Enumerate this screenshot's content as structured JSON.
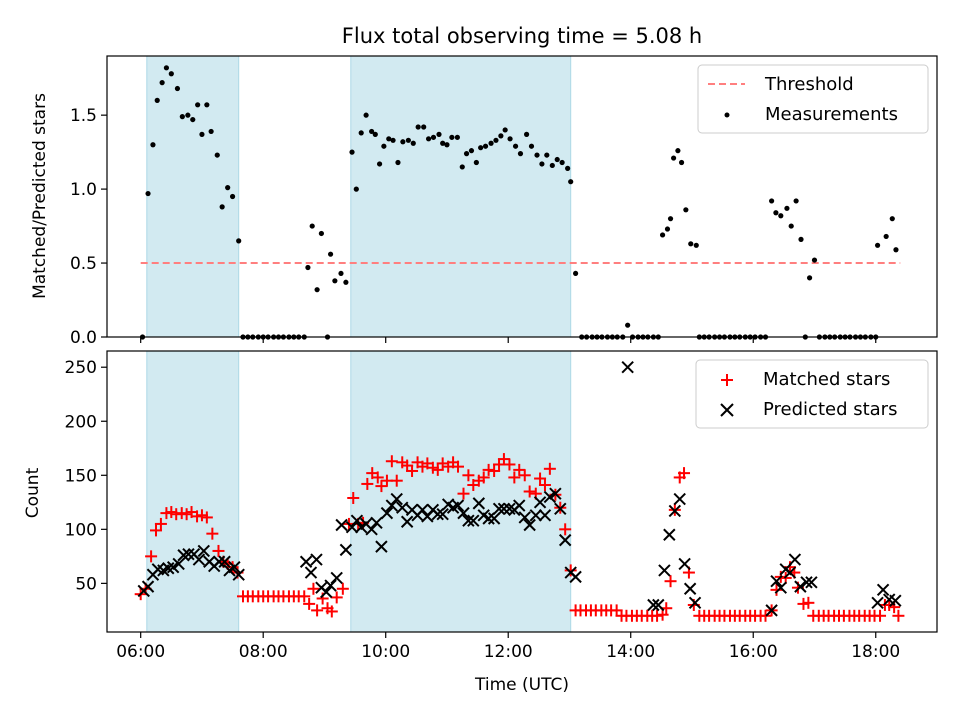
{
  "title": "Flux total observing time = 5.08 h",
  "colors": {
    "band": "#add8e6",
    "threshold": "#ff7f7f",
    "measurement": "#000000",
    "matched": "#ff0000",
    "predicted": "#000000"
  },
  "xlabel": "Time (UTC)",
  "x_ticks": [
    {
      "h": 6,
      "label": "06:00"
    },
    {
      "h": 8,
      "label": "08:00"
    },
    {
      "h": 10,
      "label": "10:00"
    },
    {
      "h": 12,
      "label": "12:00"
    },
    {
      "h": 14,
      "label": "14:00"
    },
    {
      "h": 16,
      "label": "16:00"
    },
    {
      "h": 18,
      "label": "18:00"
    }
  ],
  "x_range_hours": [
    5.45,
    19.0
  ],
  "bands_hours": [
    [
      6.1,
      7.6
    ],
    [
      9.43,
      13.02
    ]
  ],
  "top": {
    "ylabel": "Matched/Predicted stars",
    "ylim": [
      0,
      1.9
    ],
    "y_ticks": [
      {
        "v": 0.0,
        "label": "0.0"
      },
      {
        "v": 0.5,
        "label": "0.5"
      },
      {
        "v": 1.0,
        "label": "1.0"
      },
      {
        "v": 1.5,
        "label": "1.5"
      }
    ],
    "threshold": {
      "value": 0.5,
      "x_from": 6.0,
      "x_to": 18.4
    },
    "legend": [
      "Threshold",
      "Measurements"
    ],
    "measurements": [
      [
        6.03,
        0.0
      ],
      [
        6.12,
        0.97
      ],
      [
        6.2,
        1.3
      ],
      [
        6.27,
        1.6
      ],
      [
        6.35,
        1.72
      ],
      [
        6.42,
        1.82
      ],
      [
        6.5,
        1.78
      ],
      [
        6.6,
        1.68
      ],
      [
        6.68,
        1.49
      ],
      [
        6.77,
        1.5
      ],
      [
        6.85,
        1.47
      ],
      [
        6.93,
        1.57
      ],
      [
        7.0,
        1.37
      ],
      [
        7.08,
        1.57
      ],
      [
        7.15,
        1.39
      ],
      [
        7.25,
        1.23
      ],
      [
        7.33,
        0.88
      ],
      [
        7.42,
        1.01
      ],
      [
        7.5,
        0.95
      ],
      [
        7.6,
        0.65
      ],
      [
        7.67,
        0.0
      ],
      [
        7.75,
        0.0
      ],
      [
        7.83,
        0.0
      ],
      [
        7.92,
        0.0
      ],
      [
        8.0,
        0.0
      ],
      [
        8.08,
        0.0
      ],
      [
        8.17,
        0.0
      ],
      [
        8.25,
        0.0
      ],
      [
        8.33,
        0.0
      ],
      [
        8.42,
        0.0
      ],
      [
        8.5,
        0.0
      ],
      [
        8.58,
        0.0
      ],
      [
        8.67,
        0.0
      ],
      [
        8.73,
        0.47
      ],
      [
        8.8,
        0.75
      ],
      [
        8.88,
        0.32
      ],
      [
        8.95,
        0.7
      ],
      [
        9.05,
        0.0
      ],
      [
        9.1,
        0.56
      ],
      [
        9.17,
        0.38
      ],
      [
        9.27,
        0.43
      ],
      [
        9.35,
        0.37
      ],
      [
        9.45,
        1.25
      ],
      [
        9.52,
        1.0
      ],
      [
        9.6,
        1.38
      ],
      [
        9.68,
        1.5
      ],
      [
        9.77,
        1.39
      ],
      [
        9.83,
        1.37
      ],
      [
        9.9,
        1.17
      ],
      [
        9.97,
        1.29
      ],
      [
        10.05,
        1.34
      ],
      [
        10.12,
        1.33
      ],
      [
        10.2,
        1.18
      ],
      [
        10.28,
        1.32
      ],
      [
        10.37,
        1.33
      ],
      [
        10.45,
        1.31
      ],
      [
        10.53,
        1.42
      ],
      [
        10.62,
        1.42
      ],
      [
        10.7,
        1.34
      ],
      [
        10.78,
        1.35
      ],
      [
        10.87,
        1.37
      ],
      [
        10.93,
        1.31
      ],
      [
        11.0,
        1.3
      ],
      [
        11.08,
        1.35
      ],
      [
        11.17,
        1.35
      ],
      [
        11.25,
        1.15
      ],
      [
        11.32,
        1.24
      ],
      [
        11.4,
        1.26
      ],
      [
        11.48,
        1.18
      ],
      [
        11.55,
        1.28
      ],
      [
        11.63,
        1.29
      ],
      [
        11.72,
        1.31
      ],
      [
        11.8,
        1.33
      ],
      [
        11.88,
        1.36
      ],
      [
        11.95,
        1.4
      ],
      [
        12.03,
        1.34
      ],
      [
        12.12,
        1.29
      ],
      [
        12.2,
        1.24
      ],
      [
        12.3,
        1.37
      ],
      [
        12.38,
        1.29
      ],
      [
        12.47,
        1.23
      ],
      [
        12.55,
        1.17
      ],
      [
        12.63,
        1.23
      ],
      [
        12.72,
        1.16
      ],
      [
        12.8,
        1.2
      ],
      [
        12.88,
        1.18
      ],
      [
        12.97,
        1.14
      ],
      [
        13.02,
        1.05
      ],
      [
        13.1,
        0.43
      ],
      [
        13.2,
        0.0
      ],
      [
        13.28,
        0.0
      ],
      [
        13.37,
        0.0
      ],
      [
        13.45,
        0.0
      ],
      [
        13.53,
        0.0
      ],
      [
        13.62,
        0.0
      ],
      [
        13.7,
        0.0
      ],
      [
        13.78,
        0.0
      ],
      [
        13.87,
        0.0
      ],
      [
        13.95,
        0.08
      ],
      [
        14.03,
        0.0
      ],
      [
        14.12,
        0.0
      ],
      [
        14.2,
        0.0
      ],
      [
        14.28,
        0.0
      ],
      [
        14.37,
        0.0
      ],
      [
        14.45,
        0.0
      ],
      [
        14.52,
        0.69
      ],
      [
        14.6,
        0.73
      ],
      [
        14.65,
        0.8
      ],
      [
        14.7,
        1.21
      ],
      [
        14.77,
        1.26
      ],
      [
        14.83,
        1.18
      ],
      [
        14.9,
        0.86
      ],
      [
        14.98,
        0.63
      ],
      [
        15.07,
        0.62
      ],
      [
        15.12,
        0.0
      ],
      [
        15.2,
        0.0
      ],
      [
        15.28,
        0.0
      ],
      [
        15.37,
        0.0
      ],
      [
        15.45,
        0.0
      ],
      [
        15.53,
        0.0
      ],
      [
        15.62,
        0.0
      ],
      [
        15.7,
        0.0
      ],
      [
        15.78,
        0.0
      ],
      [
        15.87,
        0.0
      ],
      [
        15.95,
        0.0
      ],
      [
        16.03,
        0.0
      ],
      [
        16.12,
        0.0
      ],
      [
        16.2,
        0.0
      ],
      [
        16.3,
        0.92
      ],
      [
        16.37,
        0.84
      ],
      [
        16.45,
        0.82
      ],
      [
        16.55,
        0.87
      ],
      [
        16.62,
        0.75
      ],
      [
        16.7,
        0.92
      ],
      [
        16.78,
        0.66
      ],
      [
        16.85,
        0.0
      ],
      [
        16.92,
        0.4
      ],
      [
        17.0,
        0.52
      ],
      [
        17.08,
        0.0
      ],
      [
        17.17,
        0.0
      ],
      [
        17.25,
        0.0
      ],
      [
        17.33,
        0.0
      ],
      [
        17.42,
        0.0
      ],
      [
        17.5,
        0.0
      ],
      [
        17.58,
        0.0
      ],
      [
        17.67,
        0.0
      ],
      [
        17.75,
        0.0
      ],
      [
        17.83,
        0.0
      ],
      [
        17.92,
        0.0
      ],
      [
        18.0,
        0.0
      ],
      [
        18.03,
        0.62
      ],
      [
        18.17,
        0.68
      ],
      [
        18.27,
        0.8
      ],
      [
        18.33,
        0.59
      ]
    ]
  },
  "bottom": {
    "ylabel": "Count",
    "ylim": [
      5,
      265
    ],
    "y_ticks": [
      {
        "v": 50,
        "label": "50"
      },
      {
        "v": 100,
        "label": "100"
      },
      {
        "v": 150,
        "label": "150"
      },
      {
        "v": 200,
        "label": "200"
      },
      {
        "v": 250,
        "label": "250"
      }
    ],
    "legend": [
      "Matched stars",
      "Predicted stars"
    ],
    "matched": [
      [
        6.0,
        40
      ],
      [
        6.08,
        45
      ],
      [
        6.17,
        75
      ],
      [
        6.25,
        99
      ],
      [
        6.33,
        105
      ],
      [
        6.42,
        115
      ],
      [
        6.5,
        116
      ],
      [
        6.58,
        114
      ],
      [
        6.67,
        115
      ],
      [
        6.75,
        114
      ],
      [
        6.83,
        116
      ],
      [
        6.92,
        112
      ],
      [
        7.0,
        113
      ],
      [
        7.08,
        111
      ],
      [
        7.17,
        96
      ],
      [
        7.27,
        80
      ],
      [
        7.35,
        70
      ],
      [
        7.42,
        68
      ],
      [
        7.5,
        65
      ],
      [
        7.58,
        60
      ],
      [
        7.67,
        38
      ],
      [
        7.75,
        38
      ],
      [
        7.83,
        38
      ],
      [
        7.92,
        38
      ],
      [
        8.0,
        38
      ],
      [
        8.08,
        38
      ],
      [
        8.17,
        38
      ],
      [
        8.25,
        38
      ],
      [
        8.33,
        38
      ],
      [
        8.42,
        38
      ],
      [
        8.5,
        38
      ],
      [
        8.58,
        38
      ],
      [
        8.67,
        38
      ],
      [
        8.75,
        31
      ],
      [
        8.82,
        45
      ],
      [
        8.88,
        25
      ],
      [
        8.97,
        36
      ],
      [
        9.05,
        27
      ],
      [
        9.12,
        24
      ],
      [
        9.2,
        37
      ],
      [
        9.3,
        45
      ],
      [
        9.4,
        105
      ],
      [
        9.47,
        129
      ],
      [
        9.55,
        105
      ],
      [
        9.63,
        106
      ],
      [
        9.7,
        142
      ],
      [
        9.78,
        152
      ],
      [
        9.87,
        148
      ],
      [
        9.93,
        140
      ],
      [
        10.02,
        145
      ],
      [
        10.1,
        163
      ],
      [
        10.18,
        145
      ],
      [
        10.27,
        162
      ],
      [
        10.35,
        159
      ],
      [
        10.43,
        154
      ],
      [
        10.52,
        162
      ],
      [
        10.6,
        158
      ],
      [
        10.68,
        161
      ],
      [
        10.77,
        157
      ],
      [
        10.85,
        155
      ],
      [
        10.93,
        161
      ],
      [
        11.02,
        158
      ],
      [
        11.1,
        162
      ],
      [
        11.18,
        158
      ],
      [
        11.27,
        133
      ],
      [
        11.35,
        150
      ],
      [
        11.43,
        141
      ],
      [
        11.52,
        145
      ],
      [
        11.6,
        148
      ],
      [
        11.68,
        155
      ],
      [
        11.77,
        154
      ],
      [
        11.85,
        160
      ],
      [
        11.93,
        165
      ],
      [
        12.02,
        160
      ],
      [
        12.1,
        148
      ],
      [
        12.18,
        155
      ],
      [
        12.27,
        150
      ],
      [
        12.35,
        135
      ],
      [
        12.45,
        133
      ],
      [
        12.52,
        147
      ],
      [
        12.6,
        141
      ],
      [
        12.68,
        156
      ],
      [
        12.77,
        132
      ],
      [
        12.85,
        120
      ],
      [
        12.93,
        100
      ],
      [
        13.02,
        62
      ],
      [
        13.1,
        25
      ],
      [
        13.18,
        25
      ],
      [
        13.27,
        25
      ],
      [
        13.35,
        25
      ],
      [
        13.43,
        25
      ],
      [
        13.52,
        25
      ],
      [
        13.6,
        25
      ],
      [
        13.68,
        25
      ],
      [
        13.77,
        25
      ],
      [
        13.85,
        20
      ],
      [
        13.93,
        20
      ],
      [
        14.02,
        20
      ],
      [
        14.1,
        20
      ],
      [
        14.18,
        20
      ],
      [
        14.27,
        20
      ],
      [
        14.35,
        20
      ],
      [
        14.43,
        20
      ],
      [
        14.52,
        21
      ],
      [
        14.58,
        27
      ],
      [
        14.65,
        52
      ],
      [
        14.72,
        118
      ],
      [
        14.8,
        148
      ],
      [
        14.87,
        152
      ],
      [
        14.95,
        60
      ],
      [
        15.03,
        30
      ],
      [
        15.12,
        20
      ],
      [
        15.2,
        20
      ],
      [
        15.28,
        20
      ],
      [
        15.37,
        20
      ],
      [
        15.45,
        20
      ],
      [
        15.53,
        20
      ],
      [
        15.62,
        20
      ],
      [
        15.7,
        20
      ],
      [
        15.78,
        20
      ],
      [
        15.87,
        20
      ],
      [
        15.95,
        20
      ],
      [
        16.03,
        20
      ],
      [
        16.12,
        20
      ],
      [
        16.2,
        20
      ],
      [
        16.3,
        25
      ],
      [
        16.38,
        44
      ],
      [
        16.45,
        56
      ],
      [
        16.53,
        55
      ],
      [
        16.6,
        65
      ],
      [
        16.67,
        60
      ],
      [
        16.73,
        46
      ],
      [
        16.82,
        31
      ],
      [
        16.9,
        32
      ],
      [
        16.98,
        20
      ],
      [
        17.07,
        20
      ],
      [
        17.15,
        20
      ],
      [
        17.23,
        20
      ],
      [
        17.32,
        20
      ],
      [
        17.4,
        20
      ],
      [
        17.48,
        20
      ],
      [
        17.57,
        20
      ],
      [
        17.65,
        20
      ],
      [
        17.73,
        20
      ],
      [
        17.82,
        20
      ],
      [
        17.9,
        20
      ],
      [
        17.98,
        20
      ],
      [
        18.07,
        20
      ],
      [
        18.15,
        30
      ],
      [
        18.22,
        30
      ],
      [
        18.3,
        28
      ],
      [
        18.37,
        20
      ]
    ],
    "predicted": [
      [
        6.05,
        43
      ],
      [
        6.12,
        47
      ],
      [
        6.2,
        58
      ],
      [
        6.28,
        63
      ],
      [
        6.37,
        62
      ],
      [
        6.45,
        64
      ],
      [
        6.53,
        65
      ],
      [
        6.62,
        68
      ],
      [
        6.7,
        76
      ],
      [
        6.78,
        77
      ],
      [
        6.87,
        77
      ],
      [
        6.95,
        72
      ],
      [
        7.03,
        80
      ],
      [
        7.12,
        70
      ],
      [
        7.2,
        66
      ],
      [
        7.28,
        70
      ],
      [
        7.37,
        70
      ],
      [
        7.45,
        62
      ],
      [
        7.53,
        65
      ],
      [
        7.6,
        58
      ],
      [
        8.7,
        70
      ],
      [
        8.78,
        60
      ],
      [
        8.87,
        72
      ],
      [
        8.95,
        46
      ],
      [
        9.03,
        42
      ],
      [
        9.1,
        48
      ],
      [
        9.2,
        55
      ],
      [
        9.28,
        104
      ],
      [
        9.35,
        81
      ],
      [
        9.45,
        102
      ],
      [
        9.53,
        108
      ],
      [
        9.6,
        102
      ],
      [
        9.68,
        105
      ],
      [
        9.77,
        100
      ],
      [
        9.85,
        106
      ],
      [
        9.93,
        84
      ],
      [
        10.02,
        115
      ],
      [
        10.1,
        122
      ],
      [
        10.18,
        128
      ],
      [
        10.27,
        120
      ],
      [
        10.35,
        107
      ],
      [
        10.43,
        118
      ],
      [
        10.52,
        113
      ],
      [
        10.6,
        118
      ],
      [
        10.68,
        112
      ],
      [
        10.77,
        118
      ],
      [
        10.85,
        114
      ],
      [
        10.93,
        114
      ],
      [
        11.02,
        123
      ],
      [
        11.1,
        120
      ],
      [
        11.18,
        122
      ],
      [
        11.27,
        115
      ],
      [
        11.35,
        108
      ],
      [
        11.43,
        108
      ],
      [
        11.52,
        124
      ],
      [
        11.6,
        113
      ],
      [
        11.68,
        110
      ],
      [
        11.77,
        110
      ],
      [
        11.85,
        119
      ],
      [
        11.93,
        119
      ],
      [
        12.02,
        119
      ],
      [
        12.1,
        118
      ],
      [
        12.18,
        122
      ],
      [
        12.27,
        111
      ],
      [
        12.35,
        104
      ],
      [
        12.45,
        113
      ],
      [
        12.52,
        125
      ],
      [
        12.6,
        113
      ],
      [
        12.68,
        130
      ],
      [
        12.77,
        133
      ],
      [
        12.85,
        119
      ],
      [
        12.93,
        90
      ],
      [
        13.02,
        60
      ],
      [
        13.1,
        56
      ],
      [
        13.95,
        250
      ],
      [
        14.37,
        30
      ],
      [
        14.45,
        30
      ],
      [
        14.55,
        62
      ],
      [
        14.63,
        95
      ],
      [
        14.72,
        117
      ],
      [
        14.8,
        128
      ],
      [
        14.88,
        68
      ],
      [
        14.97,
        45
      ],
      [
        15.05,
        32
      ],
      [
        16.3,
        25
      ],
      [
        16.38,
        52
      ],
      [
        16.45,
        46
      ],
      [
        16.53,
        63
      ],
      [
        16.6,
        60
      ],
      [
        16.68,
        72
      ],
      [
        16.77,
        47
      ],
      [
        16.87,
        51
      ],
      [
        16.95,
        51
      ],
      [
        18.03,
        32
      ],
      [
        18.12,
        44
      ],
      [
        18.22,
        35
      ],
      [
        18.32,
        34
      ]
    ]
  }
}
